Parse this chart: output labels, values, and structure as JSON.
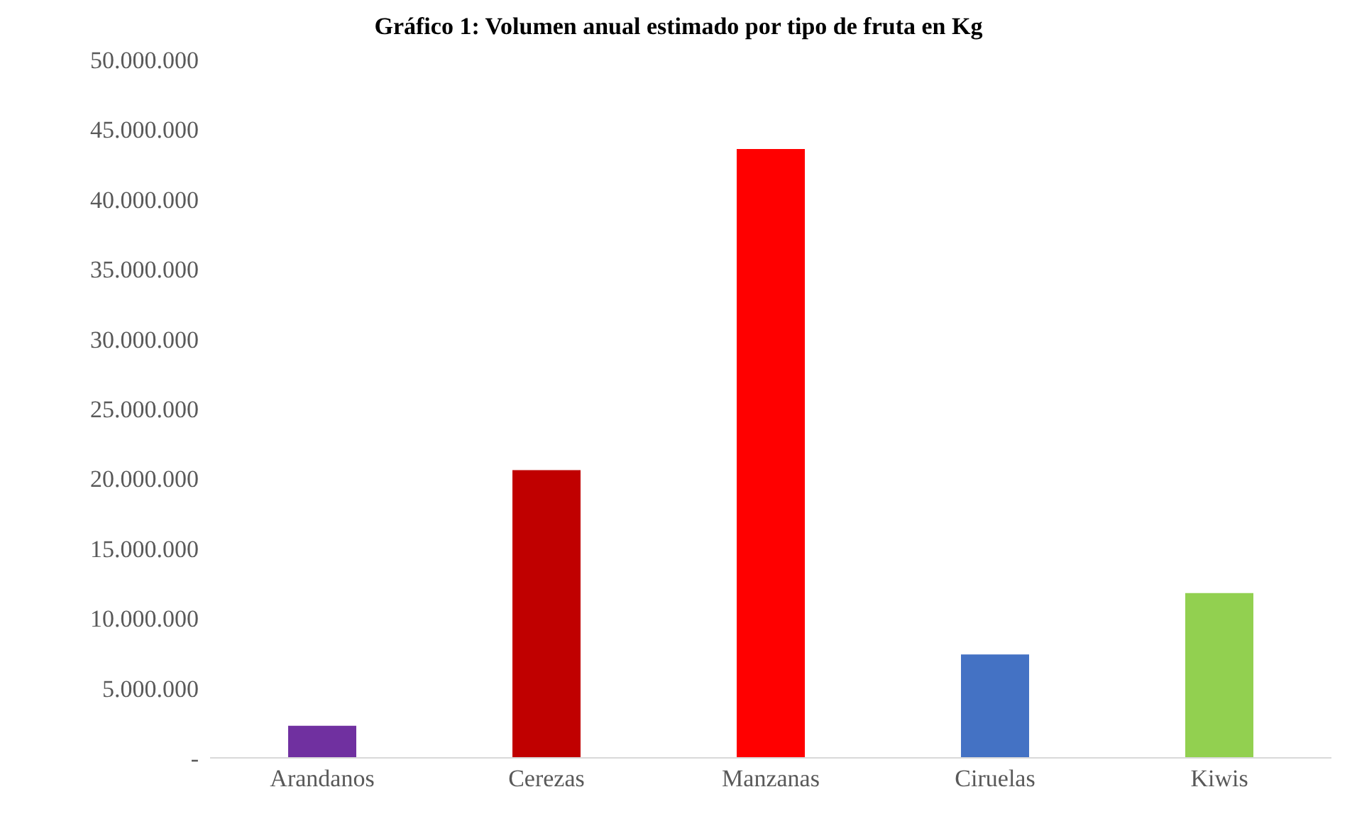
{
  "chart_data": {
    "type": "bar",
    "title": "Gráfico 1: Volumen anual estimado por tipo de fruta en Kg",
    "categories": [
      "Arandanos",
      "Cerezas",
      "Manzanas",
      "Ciruelas",
      "Kiwis"
    ],
    "values": [
      2300000,
      20600000,
      43600000,
      7400000,
      11800000
    ],
    "colors": [
      "#7030a0",
      "#c00000",
      "#ff0000",
      "#4472c4",
      "#92d050"
    ],
    "ylim": [
      0,
      50000000
    ],
    "yticks": [
      {
        "value": 0,
        "label": "-"
      },
      {
        "value": 5000000,
        "label": "5.000.000"
      },
      {
        "value": 10000000,
        "label": "10.000.000"
      },
      {
        "value": 15000000,
        "label": "15.000.000"
      },
      {
        "value": 20000000,
        "label": "20.000.000"
      },
      {
        "value": 25000000,
        "label": "25.000.000"
      },
      {
        "value": 30000000,
        "label": "30.000.000"
      },
      {
        "value": 35000000,
        "label": "35.000.000"
      },
      {
        "value": 40000000,
        "label": "40.000.000"
      },
      {
        "value": 45000000,
        "label": "45.000.000"
      },
      {
        "value": 50000000,
        "label": "50.000.000"
      }
    ],
    "grid": false,
    "legend": false
  }
}
